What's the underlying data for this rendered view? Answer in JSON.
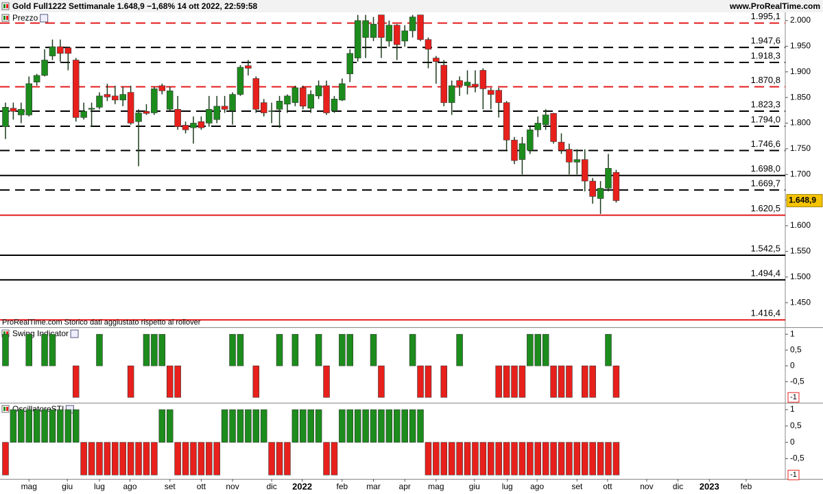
{
  "header": {
    "title": "Gold Full1222 Settimanale 1.648,9 −1,68% 14 ott 2022, 22:59:58",
    "site": "www.ProRealTime.com"
  },
  "chart_data": [
    {
      "type": "candlestick",
      "name": "Prezzo",
      "note": "ProRealTime.com Storico dati aggiustato rispetto al rollover",
      "up_color": "#1c8c1c",
      "down_color": "#e8201c",
      "x": [
        0,
        1,
        2,
        3,
        4,
        5,
        6,
        7,
        8,
        9,
        10,
        11,
        12,
        13,
        14,
        15,
        16,
        17,
        18,
        19,
        20,
        21,
        22,
        23,
        24,
        25,
        26,
        27,
        28,
        29,
        30,
        31,
        32,
        33,
        34,
        35,
        36,
        37,
        38,
        39,
        40,
        41,
        42,
        43,
        44,
        45,
        46,
        47,
        48,
        49,
        50,
        51,
        52,
        53,
        54,
        55,
        56,
        57,
        58,
        59,
        60,
        61,
        62,
        63,
        64,
        65,
        66,
        67,
        68,
        69,
        70,
        71,
        72,
        73,
        74,
        75,
        76,
        77,
        78
      ],
      "open": [
        1793,
        1829,
        1816,
        1816,
        1880,
        1893,
        1931,
        1949,
        1947,
        1923,
        1811,
        1827,
        1831,
        1856,
        1853,
        1845,
        1860,
        1803,
        1823,
        1820,
        1873,
        1827,
        1827,
        1796,
        1791,
        1803,
        1800,
        1807,
        1833,
        1824,
        1856,
        1912,
        1887,
        1840,
        1823,
        1827,
        1837,
        1840,
        1869,
        1829,
        1853,
        1873,
        1824,
        1845,
        1896,
        1927,
        1967,
        1967,
        2011,
        1960,
        1991,
        1960,
        1980,
        2011,
        1963,
        1927,
        1913,
        1840,
        1883,
        1873,
        1876,
        1903,
        1864,
        1864,
        1840,
        1767,
        1729,
        1747,
        1787,
        1797,
        1819,
        1763,
        1749,
        1724,
        1729,
        1687,
        1653,
        1673,
        1704
      ],
      "high": [
        1840,
        1840,
        1840,
        1891,
        1896,
        1944,
        1963,
        1963,
        1949,
        1927,
        1840,
        1840,
        1860,
        1877,
        1873,
        1871,
        1873,
        1827,
        1837,
        1871,
        1877,
        1871,
        1853,
        1803,
        1813,
        1813,
        1853,
        1853,
        1853,
        1860,
        1913,
        1923,
        1891,
        1847,
        1840,
        1853,
        1856,
        1873,
        1873,
        1864,
        1883,
        1883,
        1853,
        1887,
        1944,
        2011,
        2011,
        2007,
        2011,
        2000,
        1993,
        1991,
        2011,
        2011,
        1967,
        1931,
        1923,
        1883,
        1891,
        1903,
        1903,
        1907,
        1869,
        1869,
        1843,
        1773,
        1773,
        1793,
        1813,
        1827,
        1820,
        1780,
        1760,
        1749,
        1749,
        1693,
        1687,
        1740,
        1709
      ],
      "low": [
        1769,
        1807,
        1800,
        1813,
        1873,
        1891,
        1923,
        1920,
        1903,
        1803,
        1807,
        1793,
        1827,
        1843,
        1837,
        1833,
        1797,
        1716,
        1816,
        1816,
        1856,
        1824,
        1787,
        1780,
        1760,
        1787,
        1793,
        1800,
        1820,
        1797,
        1853,
        1893,
        1820,
        1813,
        1800,
        1791,
        1820,
        1833,
        1827,
        1820,
        1847,
        1816,
        1820,
        1843,
        1880,
        1920,
        1927,
        1960,
        1927,
        1949,
        1923,
        1949,
        1967,
        1960,
        1907,
        1877,
        1833,
        1816,
        1853,
        1856,
        1860,
        1827,
        1827,
        1811,
        1747,
        1720,
        1700,
        1740,
        1773,
        1787,
        1760,
        1740,
        1700,
        1700,
        1667,
        1643,
        1623,
        1667,
        1645
      ],
      "close": [
        1831,
        1823,
        1827,
        1877,
        1893,
        1923,
        1949,
        1936,
        1936,
        1811,
        1823,
        1829,
        1853,
        1851,
        1845,
        1856,
        1800,
        1820,
        1819,
        1867,
        1863,
        1863,
        1793,
        1787,
        1800,
        1791,
        1827,
        1833,
        1827,
        1856,
        1909,
        1907,
        1827,
        1820,
        1824,
        1843,
        1853,
        1869,
        1833,
        1856,
        1873,
        1820,
        1847,
        1877,
        1936,
        2000,
        2000,
        1993,
        1967,
        1991,
        1953,
        1980,
        2007,
        1963,
        1944,
        1920,
        1840,
        1873,
        1873,
        1880,
        1871,
        1867,
        1856,
        1840,
        1767,
        1727,
        1760,
        1787,
        1800,
        1816,
        1764,
        1747,
        1724,
        1729,
        1687,
        1657,
        1673,
        1712,
        1648.9
      ],
      "last_price_label": "1.648,9",
      "xlim": [
        -0.7,
        99.6
      ],
      "ylim": [
        1402,
        2016
      ],
      "yticks": [
        {
          "value": 2000,
          "label": "2.000"
        },
        {
          "value": 1950,
          "label": "1.950"
        },
        {
          "value": 1900,
          "label": "1.900"
        },
        {
          "value": 1850,
          "label": "1.850"
        },
        {
          "value": 1800,
          "label": "1.800"
        },
        {
          "value": 1750,
          "label": "1.750"
        },
        {
          "value": 1700,
          "label": "1.700"
        },
        {
          "value": 1650,
          "label": "1.650"
        },
        {
          "value": 1600,
          "label": "1.600"
        },
        {
          "value": 1550,
          "label": "1.550"
        },
        {
          "value": 1500,
          "label": "1.500"
        },
        {
          "value": 1450,
          "label": "1.450"
        }
      ],
      "levels": [
        {
          "value": 1995.1,
          "label": "1.995,1",
          "color": "#e31a1c",
          "style": "dashed"
        },
        {
          "value": 1947.6,
          "label": "1.947,6",
          "color": "#000000",
          "style": "dashed"
        },
        {
          "value": 1918.3,
          "label": "1.918,3",
          "color": "#000000",
          "style": "dashed"
        },
        {
          "value": 1870.8,
          "label": "1.870,8",
          "color": "#e31a1c",
          "style": "dashed"
        },
        {
          "value": 1823.3,
          "label": "1.823,3",
          "color": "#000000",
          "style": "dashed"
        },
        {
          "value": 1794.0,
          "label": "1.794,0",
          "color": "#000000",
          "style": "dashed"
        },
        {
          "value": 1746.6,
          "label": "1.746,6",
          "color": "#000000",
          "style": "dashed"
        },
        {
          "value": 1698.0,
          "label": "1.698,0",
          "color": "#000000",
          "style": "solid"
        },
        {
          "value": 1669.7,
          "label": "1.669,7",
          "color": "#000000",
          "style": "dashed"
        },
        {
          "value": 1620.5,
          "label": "1.620,5",
          "color": "#e31a1c",
          "style": "solid"
        },
        {
          "value": 1542.5,
          "label": "1.542,5",
          "color": "#000000",
          "style": "solid"
        },
        {
          "value": 1494.4,
          "label": "1.494,4",
          "color": "#000000",
          "style": "solid"
        },
        {
          "value": 1416.4,
          "label": "1.416,4",
          "color": "#e31a1c",
          "style": "solid"
        }
      ]
    },
    {
      "type": "bar",
      "name": "Swing Indicator",
      "up_color": "#1c8c1c",
      "down_color": "#e8201c",
      "x": [
        0,
        1,
        2,
        3,
        4,
        5,
        6,
        7,
        8,
        9,
        10,
        11,
        12,
        13,
        14,
        15,
        16,
        17,
        18,
        19,
        20,
        21,
        22,
        23,
        24,
        25,
        26,
        27,
        28,
        29,
        30,
        31,
        32,
        33,
        34,
        35,
        36,
        37,
        38,
        39,
        40,
        41,
        42,
        43,
        44,
        45,
        46,
        47,
        48,
        49,
        50,
        51,
        52,
        53,
        54,
        55,
        56,
        57,
        58,
        59,
        60,
        61,
        62,
        63,
        64,
        65,
        66,
        67,
        68,
        69,
        70,
        71,
        72,
        73,
        74,
        75,
        76,
        77,
        78
      ],
      "values": [
        1,
        0,
        0,
        1,
        0,
        1,
        1,
        0,
        0,
        -1,
        0,
        0,
        1,
        0,
        0,
        0,
        -1,
        0,
        1,
        1,
        1,
        -1,
        -1,
        0,
        0,
        0,
        0,
        0,
        0,
        1,
        1,
        0,
        -1,
        0,
        0,
        1,
        0,
        1,
        0,
        0,
        1,
        -1,
        0,
        1,
        1,
        0,
        0,
        1,
        -1,
        0,
        0,
        0,
        1,
        -1,
        -1,
        0,
        -1,
        0,
        1,
        0,
        0,
        0,
        0,
        -1,
        -1,
        -1,
        -1,
        1,
        1,
        1,
        -1,
        -1,
        -1,
        0,
        -1,
        -1,
        0,
        1,
        -1
      ],
      "last_value_label": "-1",
      "xlim": [
        -0.7,
        99.6
      ],
      "ylim": [
        -1.17,
        1.2
      ],
      "yticks": [
        1,
        {
          "value": 0.5,
          "label": "0,5"
        },
        0,
        {
          "value": -0.5,
          "label": "-0,5"
        }
      ]
    },
    {
      "type": "bar",
      "name": "OscillatoreSTI",
      "up_color": "#1c8c1c",
      "down_color": "#e8201c",
      "x": [
        0,
        1,
        2,
        3,
        4,
        5,
        6,
        7,
        8,
        9,
        10,
        11,
        12,
        13,
        14,
        15,
        16,
        17,
        18,
        19,
        20,
        21,
        22,
        23,
        24,
        25,
        26,
        27,
        28,
        29,
        30,
        31,
        32,
        33,
        34,
        35,
        36,
        37,
        38,
        39,
        40,
        41,
        42,
        43,
        44,
        45,
        46,
        47,
        48,
        49,
        50,
        51,
        52,
        53,
        54,
        55,
        56,
        57,
        58,
        59,
        60,
        61,
        62,
        63,
        64,
        65,
        66,
        67,
        68,
        69,
        70,
        71,
        72,
        73,
        74,
        75,
        76,
        77,
        78
      ],
      "values": [
        -1,
        1,
        1,
        1,
        1,
        1,
        1,
        1,
        1,
        1,
        -1,
        -1,
        -1,
        -1,
        -1,
        -1,
        -1,
        -1,
        -1,
        -1,
        1,
        1,
        -1,
        -1,
        -1,
        -1,
        -1,
        -1,
        1,
        1,
        1,
        1,
        1,
        1,
        -1,
        -1,
        -1,
        1,
        1,
        1,
        1,
        -1,
        -1,
        1,
        1,
        1,
        1,
        1,
        1,
        1,
        1,
        1,
        1,
        1,
        -1,
        -1,
        -1,
        -1,
        -1,
        -1,
        -1,
        -1,
        -1,
        -1,
        -1,
        -1,
        -1,
        -1,
        -1,
        -1,
        -1,
        -1,
        -1,
        -1,
        -1,
        -1,
        -1,
        -1,
        -1
      ],
      "last_value_label": "-1",
      "xlim": [
        -0.7,
        99.6
      ],
      "ylim": [
        -1.12,
        1.19
      ],
      "yticks": [
        1,
        {
          "value": 0.5,
          "label": "0,5"
        },
        0,
        {
          "value": -0.5,
          "label": "-0,5"
        }
      ],
      "xticks": [
        {
          "value": 3.0,
          "label": "mag"
        },
        {
          "value": 7.9,
          "label": "giu"
        },
        {
          "value": 12.0,
          "label": "lug"
        },
        {
          "value": 15.9,
          "label": "ago"
        },
        {
          "value": 21.0,
          "label": "set"
        },
        {
          "value": 25.0,
          "label": "ott"
        },
        {
          "value": 29.0,
          "label": "nov"
        },
        {
          "value": 34.0,
          "label": "dic"
        },
        {
          "value": 37.9,
          "label": "2022"
        },
        {
          "value": 43.0,
          "label": "feb"
        },
        {
          "value": 47.0,
          "label": "mar"
        },
        {
          "value": 51.0,
          "label": "apr"
        },
        {
          "value": 55.0,
          "label": "mag"
        },
        {
          "value": 59.9,
          "label": "giu"
        },
        {
          "value": 64.1,
          "label": "lug"
        },
        {
          "value": 67.9,
          "label": "ago"
        },
        {
          "value": 73.0,
          "label": "set"
        },
        {
          "value": 76.9,
          "label": "ott"
        },
        {
          "value": 81.9,
          "label": "nov"
        },
        {
          "value": 85.9,
          "label": "dic"
        },
        {
          "value": 89.9,
          "label": "2023"
        },
        {
          "value": 94.6,
          "label": "feb"
        }
      ]
    }
  ]
}
